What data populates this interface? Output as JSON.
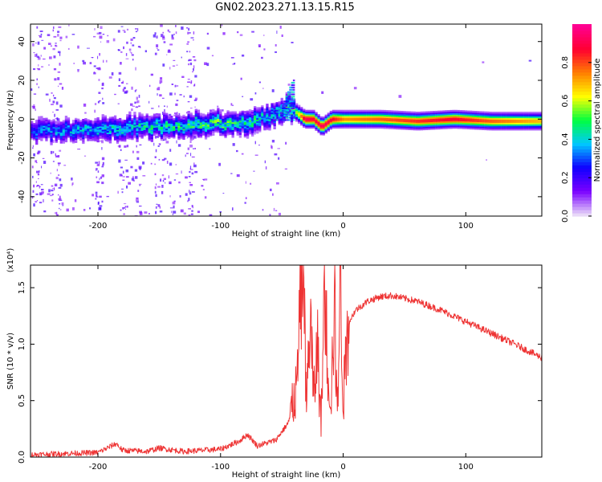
{
  "title": "GN02.2023.271.13.15.R15",
  "chart_data": [
    {
      "type": "heatmap",
      "xlabel": "Height of straight line (km)",
      "ylabel": "Frequency (Hz)",
      "xlim": [
        -255,
        162
      ],
      "ylim": [
        -50,
        49
      ],
      "x_ticks": [
        -200,
        -100,
        0,
        100
      ],
      "y_ticks": [
        -40,
        -20,
        0,
        20,
        40
      ],
      "colorbar": {
        "label": "Normalized spectral amplitude",
        "range": [
          0.0,
          1.0
        ],
        "ticks": [
          "0.0",
          "0.2",
          "0.4",
          "0.6",
          "0.8"
        ],
        "colors": [
          "#e8d8f8",
          "#7a00ff",
          "#1000ff",
          "#00c8ff",
          "#00ff40",
          "#ffff00",
          "#ff8000",
          "#ff0030",
          "#ff0090"
        ]
      },
      "ridge": {
        "x": [
          -255,
          -200,
          -150,
          -100,
          -75,
          -60,
          -45,
          -38,
          -32,
          -25,
          -18,
          -10,
          0,
          30,
          60,
          90,
          120,
          162
        ],
        "frequency_hz": [
          -6,
          -5,
          -4,
          -2,
          -1,
          2,
          6,
          3,
          0,
          0,
          -4,
          0,
          0,
          0,
          -1,
          0,
          -1,
          -1
        ],
        "peak_amplitude": [
          0.35,
          0.4,
          0.45,
          0.5,
          0.45,
          0.4,
          0.5,
          0.6,
          0.95,
          0.9,
          0.95,
          0.9,
          0.75,
          0.8,
          0.85,
          0.9,
          0.8,
          0.7
        ]
      }
    },
    {
      "type": "line",
      "xlabel": "Height of straight line (km)",
      "ylabel": "SNR (10 * v/v)",
      "y_multiplier": "(x10⁴)",
      "xlim": [
        -255,
        162
      ],
      "ylim": [
        0,
        1.7
      ],
      "x_ticks": [
        -200,
        -100,
        0,
        100
      ],
      "y_ticks": [
        "0.0",
        "0.5",
        "1.0",
        "1.5"
      ],
      "series": [
        {
          "color": "#ee3333",
          "x": [
            -255,
            -230,
            -200,
            -185,
            -180,
            -160,
            -150,
            -130,
            -100,
            -85,
            -78,
            -70,
            -55,
            -45,
            -38,
            -33,
            -30,
            -27,
            -24,
            -21,
            -18,
            -15,
            -13,
            -10,
            -7,
            -5,
            -2,
            0,
            5,
            10,
            20,
            30,
            40,
            60,
            80,
            100,
            120,
            140,
            162
          ],
          "y": [
            0.02,
            0.03,
            0.04,
            0.12,
            0.06,
            0.05,
            0.08,
            0.05,
            0.07,
            0.14,
            0.2,
            0.1,
            0.15,
            0.3,
            0.6,
            1.7,
            0.4,
            1.3,
            0.5,
            1.0,
            0.3,
            1.6,
            0.9,
            0.5,
            1.4,
            0.4,
            1.55,
            0.5,
            1.2,
            1.3,
            1.38,
            1.42,
            1.43,
            1.38,
            1.3,
            1.2,
            1.1,
            1.0,
            0.88
          ]
        }
      ]
    }
  ]
}
